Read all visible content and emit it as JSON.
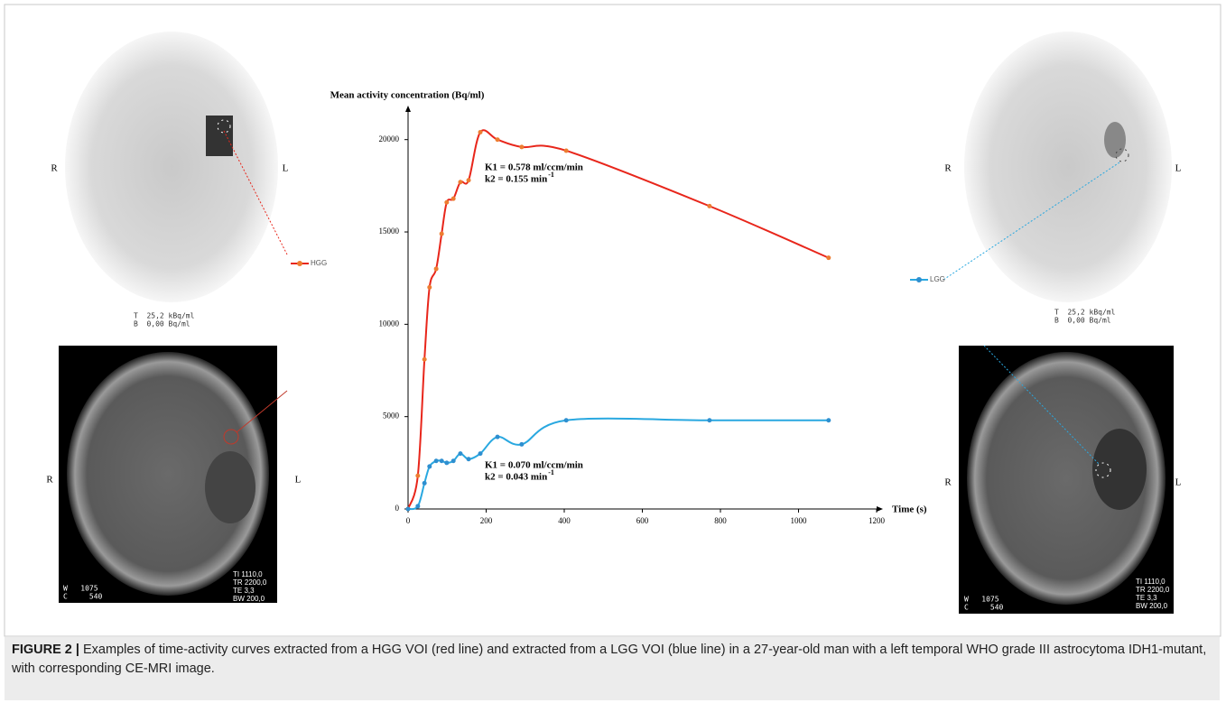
{
  "chart_data": {
    "type": "line",
    "y_label": "Mean activity concentration (Bq/ml)",
    "x_label": "Time (s)",
    "x": [
      0,
      25,
      42,
      55,
      72,
      86,
      99,
      116,
      134,
      155,
      185,
      229,
      291,
      405,
      772,
      1077
    ],
    "series": [
      {
        "name": "HGG",
        "color": "#e8261b",
        "marker_color": "#ed7d31",
        "values": [
          0,
          1800,
          8100,
          12000,
          13000,
          14900,
          16600,
          16800,
          17700,
          17800,
          20400,
          20000,
          19600,
          19400,
          16400,
          13600
        ]
      },
      {
        "name": "LGG",
        "color": "#29a8e0",
        "marker_color": "#2e8fd0",
        "values": [
          0,
          150,
          1400,
          2300,
          2600,
          2600,
          2500,
          2600,
          3000,
          2700,
          3000,
          3900,
          3500,
          4800,
          4800,
          4800
        ]
      }
    ],
    "xlim": [
      0,
      1200
    ],
    "xticks": [
      0,
      200,
      400,
      600,
      800,
      1000,
      1200
    ],
    "ylim": [
      0,
      21500
    ],
    "yticks": [
      0,
      5000,
      10000,
      15000,
      20000
    ],
    "annotations": [
      {
        "lines": [
          "K1 = 0.578 ml/ccm/min",
          "k2 = 0.155 min"
        ],
        "sup": "-1"
      },
      {
        "lines": [
          "K1 = 0.070 ml/ccm/min",
          "k2 = 0.043 min"
        ],
        "sup": "-1"
      }
    ]
  },
  "pet_panels": [
    {
      "sides": [
        "R",
        "L"
      ],
      "scale": [
        "T  25,2 kBq/ml",
        "B  0,00 Bq/ml"
      ]
    },
    {
      "sides": [
        "R",
        "L"
      ],
      "scale": [
        "T  25,2 kBq/ml",
        "B  0,00 Bq/ml"
      ]
    }
  ],
  "mri_panels": [
    {
      "sides": [
        "R",
        "L"
      ],
      "window": [
        "W   1075",
        "C     540"
      ],
      "params": [
        "TI 1110,0",
        "TR 2200,0",
        "TE 3,3",
        "BW 200,0"
      ]
    },
    {
      "sides": [
        "R",
        "L"
      ],
      "window": [
        "W   1075",
        "C     540"
      ],
      "params": [
        "TI 1110,0",
        "TR 2200,0",
        "TE 3,3",
        "BW 200,0"
      ]
    }
  ],
  "caption": {
    "label": "FIGURE 2 |",
    "text": "Examples of time-activity curves extracted from a HGG VOI (red line) and extracted from a LGG VOI (blue line) in a 27-year-old man with a left temporal WHO grade III astrocytoma IDH1-mutant, with corresponding CE-MRI image."
  }
}
